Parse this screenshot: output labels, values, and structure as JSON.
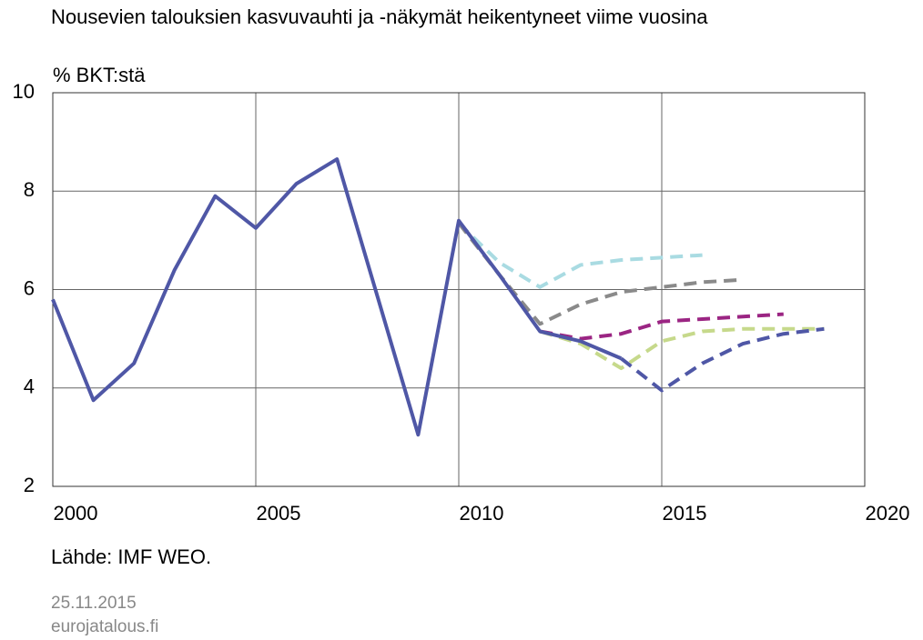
{
  "chart_data": {
    "type": "line",
    "title": "Nousevien talouksien kasvuvauhti ja -näkymät heikentyneet viime vuosina",
    "y_label": "% BKT:stä",
    "source": "Lähde: IMF WEO.",
    "date": "25.11.2015",
    "site": "eurojatalous.fi",
    "xlim": [
      2000,
      2020
    ],
    "xticks": [
      2000,
      2005,
      2010,
      2015,
      2020
    ],
    "ylim": [
      2,
      10
    ],
    "yticks": [
      2,
      4,
      6,
      8,
      10
    ],
    "grid": true,
    "series": [
      {
        "color": "#a9dbe2",
        "dashed": true,
        "x": [
          2010,
          2011,
          2012,
          2013,
          2014,
          2015,
          2016
        ],
        "values": [
          7.35,
          6.55,
          6.05,
          6.5,
          6.6,
          6.65,
          6.7
        ]
      },
      {
        "color": "#8a8a8a",
        "dashed": true,
        "x": [
          2010,
          2011,
          2012,
          2013,
          2014,
          2015,
          2016,
          2017
        ],
        "values": [
          7.35,
          6.3,
          5.3,
          5.7,
          5.95,
          6.05,
          6.15,
          6.2
        ]
      },
      {
        "color": "#9b2583",
        "dashed": true,
        "x": [
          2012,
          2013,
          2014,
          2015,
          2016,
          2017,
          2018
        ],
        "values": [
          5.15,
          5.0,
          5.1,
          5.35,
          5.4,
          5.45,
          5.5
        ]
      },
      {
        "color": "#c6d98b",
        "dashed": true,
        "x": [
          2012,
          2013,
          2014,
          2015,
          2016,
          2017,
          2018,
          2019
        ],
        "values": [
          5.15,
          4.9,
          4.4,
          4.95,
          5.15,
          5.2,
          5.2,
          5.2
        ]
      },
      {
        "color": "#4f57a6",
        "dashed": true,
        "x": [
          2014,
          2015,
          2016,
          2017,
          2018,
          2019
        ],
        "values": [
          4.6,
          3.95,
          4.5,
          4.9,
          5.1,
          5.2
        ]
      },
      {
        "color": "#4f57a6",
        "dashed": false,
        "x": [
          2000,
          2001,
          2002,
          2003,
          2004,
          2005,
          2006,
          2007,
          2008,
          2009,
          2010,
          2011,
          2012,
          2013,
          2014
        ],
        "values": [
          5.8,
          3.75,
          4.5,
          6.4,
          7.9,
          7.25,
          8.15,
          8.65,
          5.85,
          3.05,
          7.4,
          6.3,
          5.15,
          4.95,
          4.6
        ]
      }
    ]
  }
}
